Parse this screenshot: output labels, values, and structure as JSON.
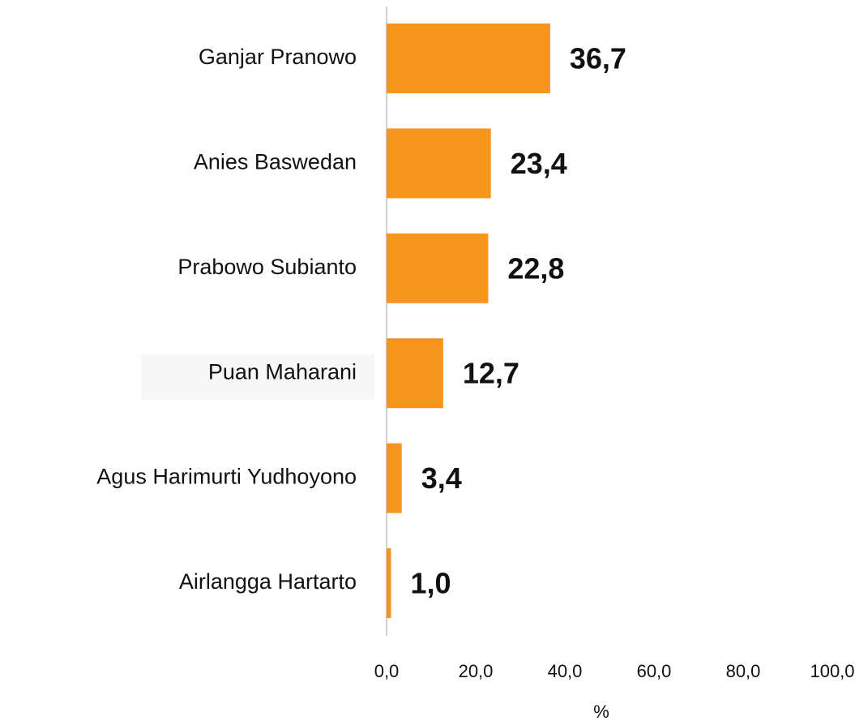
{
  "chart_data": {
    "type": "bar",
    "orientation": "horizontal",
    "categories": [
      "Ganjar Pranowo",
      "Anies Baswedan",
      "Prabowo Subianto",
      "Puan Maharani",
      "Agus Harimurti Yudhoyono",
      "Airlangga Hartarto"
    ],
    "values": [
      36.7,
      23.4,
      22.8,
      12.7,
      3.4,
      1.0
    ],
    "value_labels": [
      "36,7",
      "23,4",
      "22,8",
      "12,7",
      "3,4",
      "1,0"
    ],
    "color": "#f7941d",
    "xlim": [
      0,
      100
    ],
    "xticks": [
      {
        "value": 0,
        "label": "0,0"
      },
      {
        "value": 20,
        "label": "20,0"
      },
      {
        "value": 40,
        "label": "40,0"
      },
      {
        "value": 60,
        "label": "60,0"
      },
      {
        "value": 80,
        "label": "80,0"
      },
      {
        "value": 100,
        "label": "100,0"
      }
    ],
    "xlabel": "%"
  }
}
